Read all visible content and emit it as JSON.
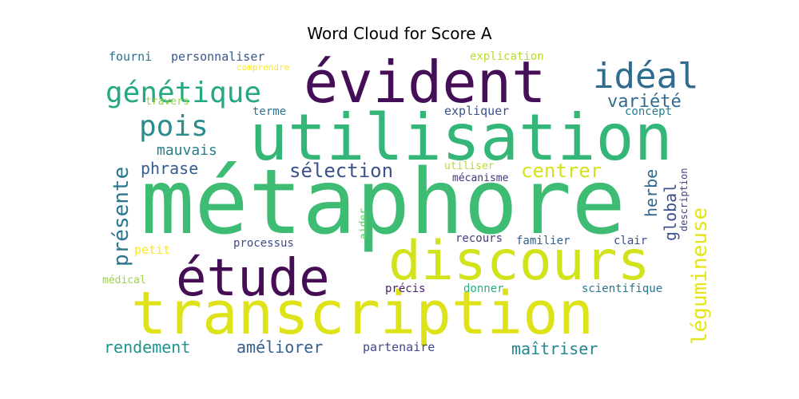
{
  "chart_data": {
    "type": "wordcloud",
    "title": "Word Cloud for Score A",
    "words": [
      {
        "text": "métaphore",
        "weight": 1.0,
        "color": "#3fbc73"
      },
      {
        "text": "utilisation",
        "weight": 0.85,
        "color": "#34b679"
      },
      {
        "text": "transcription",
        "weight": 0.82,
        "color": "#dde318"
      },
      {
        "text": "évident",
        "weight": 0.78,
        "color": "#440f56"
      },
      {
        "text": "discours",
        "weight": 0.72,
        "color": "#d2e21b"
      },
      {
        "text": "étude",
        "weight": 0.68,
        "color": "#450d54"
      },
      {
        "text": "génétique",
        "weight": 0.42,
        "color": "#26a884"
      },
      {
        "text": "idéal",
        "weight": 0.4,
        "color": "#2f6c8e"
      },
      {
        "text": "pois",
        "weight": 0.36,
        "color": "#2c8c8c"
      },
      {
        "text": "présente",
        "weight": 0.3,
        "color": "#2b758e"
      },
      {
        "text": "légumineuse",
        "weight": 0.3,
        "color": "#e5e419"
      },
      {
        "text": "variété",
        "weight": 0.25,
        "color": "#2f6b8e"
      },
      {
        "text": "centrer",
        "weight": 0.25,
        "color": "#d5e21a"
      },
      {
        "text": "sélection",
        "weight": 0.25,
        "color": "#3b528b"
      },
      {
        "text": "global",
        "weight": 0.22,
        "color": "#3b518b"
      },
      {
        "text": "herbe",
        "weight": 0.22,
        "color": "#31688e"
      },
      {
        "text": "phrase",
        "weight": 0.2,
        "color": "#365c8d"
      },
      {
        "text": "mauvais",
        "weight": 0.2,
        "color": "#277f8e"
      },
      {
        "text": "rendement",
        "weight": 0.2,
        "color": "#20928c"
      },
      {
        "text": "améliorer",
        "weight": 0.2,
        "color": "#355f8d"
      },
      {
        "text": "maîtriser",
        "weight": 0.2,
        "color": "#24868e"
      },
      {
        "text": "fourni",
        "weight": 0.15,
        "color": "#2c718e"
      },
      {
        "text": "personnaliser",
        "weight": 0.15,
        "color": "#39568c"
      },
      {
        "text": "partenaire",
        "weight": 0.15,
        "color": "#3e4989"
      },
      {
        "text": "expliquer",
        "weight": 0.15,
        "color": "#3a538b"
      },
      {
        "text": "explication",
        "weight": 0.14,
        "color": "#b5de2b"
      },
      {
        "text": "concept",
        "weight": 0.14,
        "color": "#287c8e"
      },
      {
        "text": "terme",
        "weight": 0.14,
        "color": "#2c728e"
      },
      {
        "text": "travers",
        "weight": 0.14,
        "color": "#8bd646"
      },
      {
        "text": "petit",
        "weight": 0.14,
        "color": "#fde725"
      },
      {
        "text": "médical",
        "weight": 0.14,
        "color": "#95d840"
      },
      {
        "text": "processus",
        "weight": 0.13,
        "color": "#3e4a89"
      },
      {
        "text": "recours",
        "weight": 0.13,
        "color": "#433e85"
      },
      {
        "text": "familier",
        "weight": 0.13,
        "color": "#34608d"
      },
      {
        "text": "clair",
        "weight": 0.13,
        "color": "#3d4e8a"
      },
      {
        "text": "précis",
        "weight": 0.13,
        "color": "#481f70"
      },
      {
        "text": "donner",
        "weight": 0.13,
        "color": "#29af7f"
      },
      {
        "text": "scientifique",
        "weight": 0.13,
        "color": "#2c738e"
      },
      {
        "text": "utiliser",
        "weight": 0.12,
        "color": "#b8de29"
      },
      {
        "text": "mécanisme",
        "weight": 0.12,
        "color": "#46327e"
      },
      {
        "text": "aider",
        "weight": 0.12,
        "color": "#5ec962"
      },
      {
        "text": "description",
        "weight": 0.12,
        "color": "#414487"
      },
      {
        "text": "comprendre",
        "weight": 0.1,
        "color": "#fde725"
      }
    ]
  }
}
